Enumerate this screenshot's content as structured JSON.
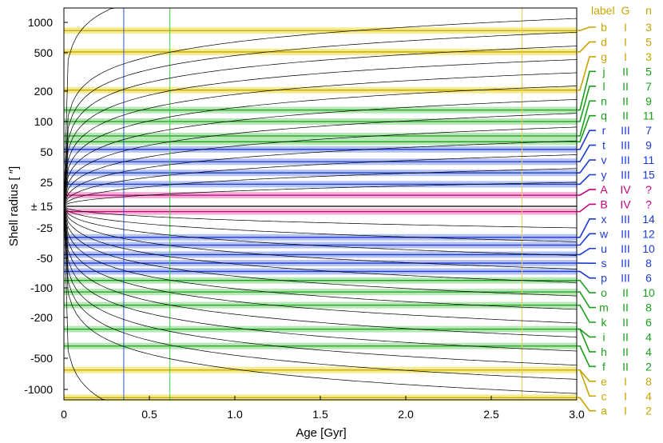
{
  "chart_data": {
    "type": "line",
    "xlabel": "Age [Gyr]",
    "ylabel": "Shell radius [ ″]",
    "xlim": [
      0,
      3.0
    ],
    "x_ticks": [
      "0",
      "0.5",
      "1.0",
      "1.5",
      "2.0",
      "2.5",
      "3.0"
    ],
    "y_ticks_upper": [
      "1000",
      "500",
      "200",
      "100",
      "50",
      "25",
      "± 15"
    ],
    "y_ticks_lower": [
      "-25",
      "-50",
      "-100",
      "-200",
      "-500",
      "-1000"
    ],
    "scale": "symmetric log radius, linear near zero (±15)",
    "vertical_lines": [
      {
        "age": 0.35,
        "color": "#3355cc"
      },
      {
        "age": 0.62,
        "color": "#44cc44"
      },
      {
        "age": 2.68,
        "color": "#e8d04a"
      }
    ],
    "legend_header": {
      "label": "label",
      "g": "G",
      "n": "n"
    },
    "group_colors": {
      "I": "#c8a400",
      "II": "#1aa01a",
      "III": "#1c3ad4",
      "IV": "#c4007a"
    },
    "shells": [
      {
        "label": "b",
        "g": "I",
        "n": "3",
        "radius": 830
      },
      {
        "label": "d",
        "g": "I",
        "n": "5",
        "radius": 510
      },
      {
        "label": "g",
        "g": "I",
        "n": "3",
        "radius": 205
      },
      {
        "label": "j",
        "g": "II",
        "n": "5",
        "radius": 130
      },
      {
        "label": "l",
        "g": "II",
        "n": "7",
        "radius": 100
      },
      {
        "label": "n",
        "g": "II",
        "n": "9",
        "radius": 72
      },
      {
        "label": "q",
        "g": "II",
        "n": "11",
        "radius": 63
      },
      {
        "label": "r",
        "g": "III",
        "n": "7",
        "radius": 53
      },
      {
        "label": "t",
        "g": "III",
        "n": "9",
        "radius": 40
      },
      {
        "label": "v",
        "g": "III",
        "n": "11",
        "radius": 31
      },
      {
        "label": "y",
        "g": "III",
        "n": "15",
        "radius": 24
      },
      {
        "label": "A",
        "g": "IV",
        "n": "?",
        "radius": 19
      },
      {
        "label": "B",
        "g": "IV",
        "n": "?",
        "radius": -17
      },
      {
        "label": "x",
        "g": "III",
        "n": "14",
        "radius": -31
      },
      {
        "label": "w",
        "g": "III",
        "n": "12",
        "radius": -37
      },
      {
        "label": "u",
        "g": "III",
        "n": "10",
        "radius": -46
      },
      {
        "label": "s",
        "g": "III",
        "n": "8",
        "radius": -56
      },
      {
        "label": "p",
        "g": "III",
        "n": "6",
        "radius": -68
      },
      {
        "label": "o",
        "g": "II",
        "n": "10",
        "radius": -84
      },
      {
        "label": "m",
        "g": "II",
        "n": "8",
        "radius": -110
      },
      {
        "label": "k",
        "g": "II",
        "n": "6",
        "radius": -150
      },
      {
        "label": "i",
        "g": "II",
        "n": "4",
        "radius": -260
      },
      {
        "label": "h",
        "g": "II",
        "n": "4",
        "radius": -260
      },
      {
        "label": "f",
        "g": "II",
        "n": "2",
        "radius": -380
      },
      {
        "label": "e",
        "g": "I",
        "n": "8",
        "radius": -650
      },
      {
        "label": "c",
        "g": "I",
        "n": "4",
        "radius": -650
      },
      {
        "label": "a",
        "g": "I",
        "n": "2",
        "radius": -1200
      }
    ],
    "curves": {
      "color": "#000000",
      "count_per_half": 14
    }
  }
}
